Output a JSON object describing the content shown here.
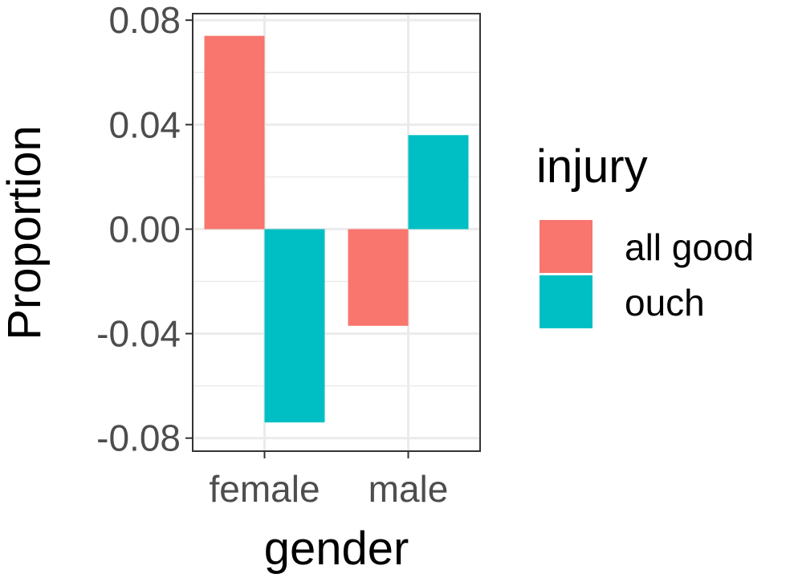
{
  "chart_data": {
    "type": "bar",
    "categories": [
      "female",
      "male"
    ],
    "series": [
      {
        "name": "all good",
        "color": "#F8766D",
        "values": [
          0.074,
          -0.037
        ]
      },
      {
        "name": "ouch",
        "color": "#00BFC4",
        "values": [
          -0.074,
          0.036
        ]
      }
    ],
    "xlabel": "gender",
    "ylabel": "Proportion",
    "ylim": [
      -0.08,
      0.08
    ],
    "yticks": [
      -0.08,
      -0.04,
      0.0,
      0.04,
      0.08
    ],
    "ytick_labels": [
      "-0.08",
      "-0.04",
      "0.00",
      "0.04",
      "0.08"
    ],
    "grid": true,
    "legend": {
      "title": "injury",
      "position": "right"
    }
  }
}
